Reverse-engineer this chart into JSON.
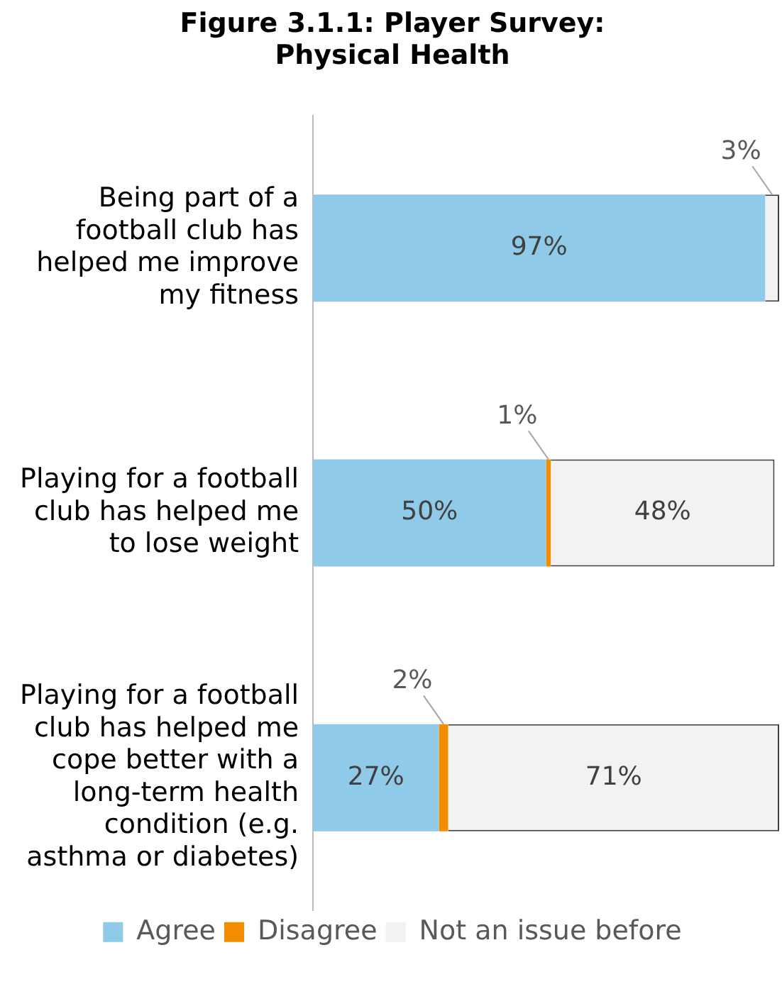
{
  "chart_data": {
    "type": "bar",
    "orientation": "horizontal",
    "stacked": true,
    "title": "Figure 3.1.1: Player Survey: Physical Health",
    "categories": [
      "Being part of a football club has helped me improve my fitness",
      "Playing for a football club has helped me to lose weight",
      "Playing for a football club has helped me cope better with a long-term health condition (e.g. asthma or diabetes)"
    ],
    "series": [
      {
        "name": "Agree",
        "color": "#8fcae9",
        "values": [
          97,
          50,
          27
        ],
        "value_labels": [
          "97%",
          "50%",
          "27%"
        ]
      },
      {
        "name": "Disagree",
        "color": "#f28c00",
        "values": [
          null,
          1,
          2
        ],
        "value_labels": [
          null,
          "1%",
          "2%"
        ]
      },
      {
        "name": "Not an issue before",
        "color": "#f2f2f2",
        "values": [
          3,
          48,
          71
        ],
        "value_labels": [
          "3%",
          "48%",
          "71%"
        ]
      }
    ],
    "tick_labels": "y",
    "legend": "bottom"
  }
}
